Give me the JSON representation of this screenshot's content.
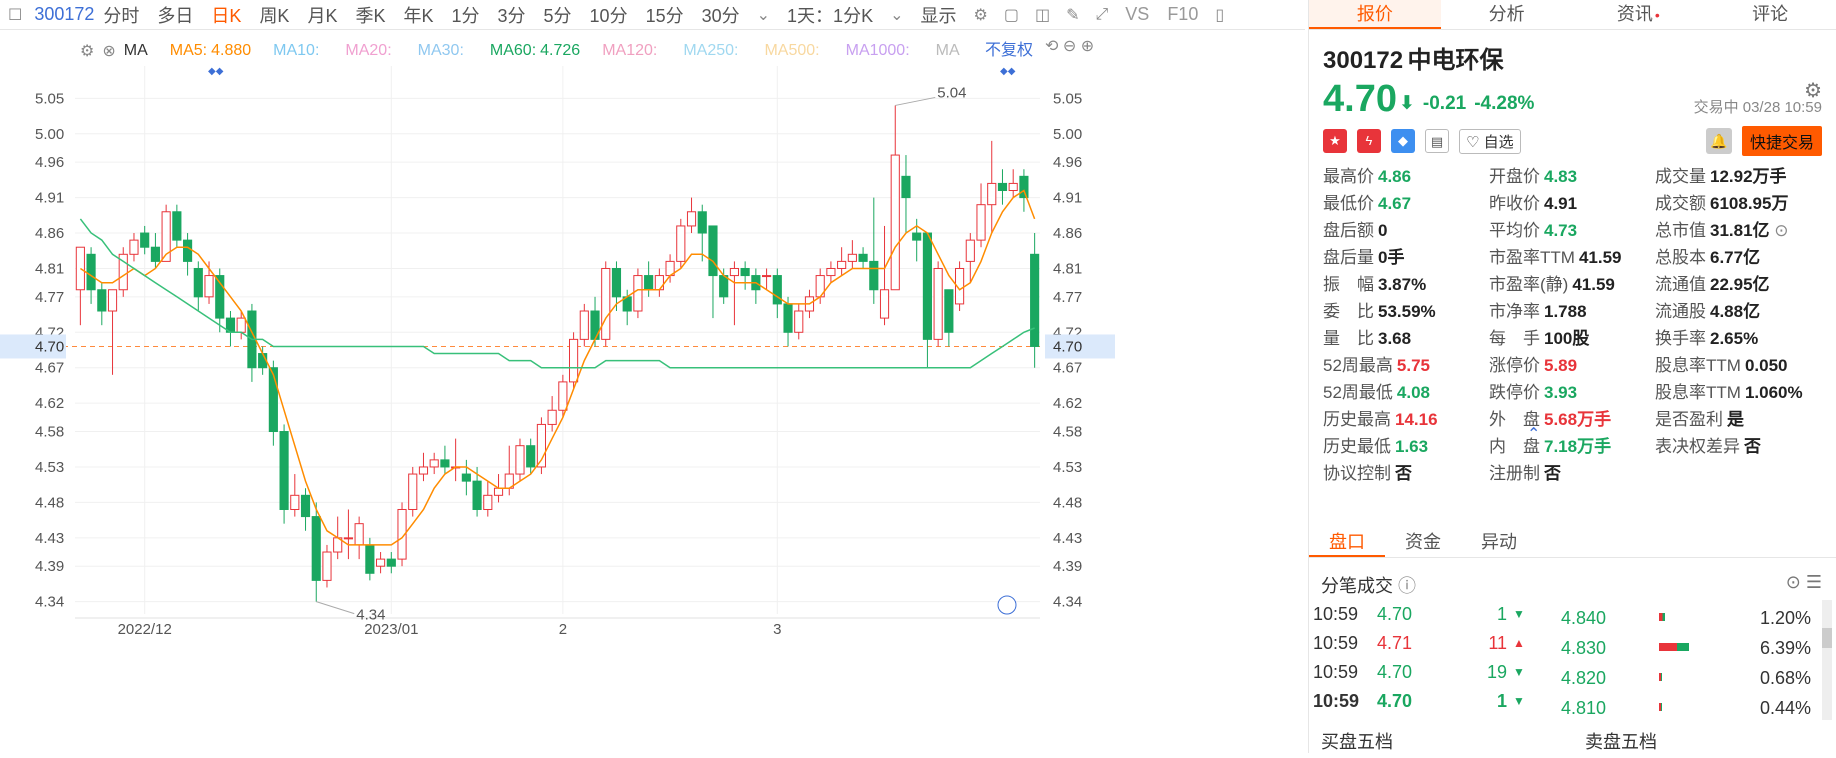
{
  "toolbar": {
    "code": "300172",
    "periods": [
      "分时",
      "多日",
      "日K",
      "周K",
      "月K",
      "季K",
      "年K",
      "1分",
      "3分",
      "5分",
      "10分",
      "15分",
      "30分"
    ],
    "active_period": "日K",
    "range": "1天：1分K",
    "display": "显示",
    "vs": "VS",
    "f10": "F10"
  },
  "ma_bar": {
    "label": "MA",
    "items": [
      {
        "name": "MA5:",
        "value": "4.880",
        "color": "#ff8c00"
      },
      {
        "name": "MA10:",
        "value": "",
        "color": "#7ec8f0"
      },
      {
        "name": "MA20:",
        "value": "",
        "color": "#f0a0d0"
      },
      {
        "name": "MA30:",
        "value": "",
        "color": "#90c8f0"
      },
      {
        "name": "MA60:",
        "value": "4.726",
        "color": "#1aa760"
      },
      {
        "name": "MA120:",
        "value": "",
        "color": "#f0a0c0"
      },
      {
        "name": "MA250:",
        "value": "",
        "color": "#a0d8f0"
      },
      {
        "name": "MA500:",
        "value": "",
        "color": "#f8d8a0"
      },
      {
        "name": "MA1000:",
        "value": "",
        "color": "#c8a0f0"
      },
      {
        "name": "MA",
        "value": "",
        "color": "#bbbbbb"
      }
    ],
    "adjust": "不复权"
  },
  "chart_data": {
    "type": "candlestick",
    "yticks": [
      "5.05",
      "5.00",
      "4.96",
      "4.91",
      "4.86",
      "4.81",
      "4.77",
      "4.72",
      "4.67",
      "4.62",
      "4.58",
      "4.53",
      "4.48",
      "4.43",
      "4.39",
      "4.34"
    ],
    "ylim": [
      4.3,
      5.09
    ],
    "xticks": [
      "2022/12",
      "2023/01",
      "2",
      "3"
    ],
    "current_price": "4.70",
    "high_label": "5.04",
    "low_label": "4.34",
    "candles": [
      [
        4.78,
        4.84,
        4.73,
        4.84
      ],
      [
        4.83,
        4.78,
        4.76,
        4.84
      ],
      [
        4.78,
        4.75,
        4.73,
        4.79
      ],
      [
        4.75,
        4.78,
        4.66,
        4.78
      ],
      [
        4.78,
        4.83,
        4.77,
        4.84
      ],
      [
        4.83,
        4.85,
        4.82,
        4.86
      ],
      [
        4.86,
        4.84,
        4.83,
        4.87
      ],
      [
        4.84,
        4.82,
        4.81,
        4.86
      ],
      [
        4.82,
        4.89,
        4.82,
        4.9
      ],
      [
        4.89,
        4.85,
        4.84,
        4.9
      ],
      [
        4.85,
        4.82,
        4.8,
        4.86
      ],
      [
        4.81,
        4.77,
        4.75,
        4.82
      ],
      [
        4.77,
        4.8,
        4.76,
        4.82
      ],
      [
        4.8,
        4.74,
        4.72,
        4.81
      ],
      [
        4.74,
        4.72,
        4.7,
        4.75
      ],
      [
        4.72,
        4.74,
        4.71,
        4.75
      ],
      [
        4.75,
        4.67,
        4.65,
        4.76
      ],
      [
        4.69,
        4.67,
        4.66,
        4.7
      ],
      [
        4.67,
        4.58,
        4.56,
        4.68
      ],
      [
        4.58,
        4.47,
        4.45,
        4.59
      ],
      [
        4.47,
        4.49,
        4.46,
        4.52
      ],
      [
        4.49,
        4.46,
        4.44,
        4.5
      ],
      [
        4.46,
        4.37,
        4.34,
        4.48
      ],
      [
        4.37,
        4.41,
        4.36,
        4.42
      ],
      [
        4.41,
        4.43,
        4.4,
        4.46
      ],
      [
        4.43,
        4.43,
        4.4,
        4.47
      ],
      [
        4.42,
        4.45,
        4.4,
        4.46
      ],
      [
        4.42,
        4.38,
        4.37,
        4.43
      ],
      [
        4.39,
        4.4,
        4.38,
        4.41
      ],
      [
        4.4,
        4.39,
        4.38,
        4.41
      ],
      [
        4.4,
        4.47,
        4.39,
        4.48
      ],
      [
        4.47,
        4.52,
        4.46,
        4.53
      ],
      [
        4.52,
        4.53,
        4.51,
        4.55
      ],
      [
        4.53,
        4.54,
        4.52,
        4.55
      ],
      [
        4.54,
        4.53,
        4.52,
        4.56
      ],
      [
        4.53,
        4.53,
        4.51,
        4.57
      ],
      [
        4.52,
        4.51,
        4.49,
        4.54
      ],
      [
        4.51,
        4.47,
        4.46,
        4.53
      ],
      [
        4.47,
        4.49,
        4.46,
        4.51
      ],
      [
        4.49,
        4.5,
        4.48,
        4.52
      ],
      [
        4.5,
        4.52,
        4.49,
        4.56
      ],
      [
        4.52,
        4.56,
        4.51,
        4.57
      ],
      [
        4.56,
        4.53,
        4.52,
        4.57
      ],
      [
        4.53,
        4.59,
        4.52,
        4.6
      ],
      [
        4.59,
        4.61,
        4.58,
        4.63
      ],
      [
        4.61,
        4.65,
        4.6,
        4.66
      ],
      [
        4.65,
        4.71,
        4.64,
        4.72
      ],
      [
        4.71,
        4.75,
        4.7,
        4.76
      ],
      [
        4.75,
        4.71,
        4.7,
        4.77
      ],
      [
        4.71,
        4.81,
        4.7,
        4.82
      ],
      [
        4.81,
        4.77,
        4.75,
        4.82
      ],
      [
        4.77,
        4.75,
        4.73,
        4.78
      ],
      [
        4.75,
        4.8,
        4.74,
        4.81
      ],
      [
        4.8,
        4.78,
        4.77,
        4.82
      ],
      [
        4.78,
        4.8,
        4.77,
        4.81
      ],
      [
        4.8,
        4.82,
        4.79,
        4.83
      ],
      [
        4.82,
        4.87,
        4.81,
        4.88
      ],
      [
        4.87,
        4.89,
        4.86,
        4.91
      ],
      [
        4.89,
        4.86,
        4.82,
        4.9
      ],
      [
        4.87,
        4.8,
        4.74,
        4.87
      ],
      [
        4.8,
        4.77,
        4.76,
        4.81
      ],
      [
        4.8,
        4.81,
        4.73,
        4.82
      ],
      [
        4.81,
        4.8,
        4.78,
        4.82
      ],
      [
        4.8,
        4.78,
        4.76,
        4.81
      ],
      [
        4.8,
        4.8,
        4.78,
        4.81
      ],
      [
        4.8,
        4.76,
        4.74,
        4.81
      ],
      [
        4.76,
        4.72,
        4.7,
        4.77
      ],
      [
        4.72,
        4.75,
        4.71,
        4.76
      ],
      [
        4.75,
        4.77,
        4.74,
        4.78
      ],
      [
        4.77,
        4.8,
        4.76,
        4.81
      ],
      [
        4.8,
        4.81,
        4.79,
        4.82
      ],
      [
        4.81,
        4.82,
        4.8,
        4.84
      ],
      [
        4.82,
        4.83,
        4.81,
        4.85
      ],
      [
        4.83,
        4.82,
        4.81,
        4.84
      ],
      [
        4.82,
        4.78,
        4.76,
        4.91
      ],
      [
        4.74,
        4.78,
        4.73,
        4.87
      ],
      [
        4.78,
        4.97,
        4.78,
        5.04
      ],
      [
        4.94,
        4.91,
        4.86,
        4.97
      ],
      [
        4.86,
        4.85,
        4.82,
        4.88
      ],
      [
        4.86,
        4.71,
        4.67,
        4.86
      ],
      [
        4.71,
        4.81,
        4.7,
        4.82
      ],
      [
        4.78,
        4.72,
        4.7,
        4.78
      ],
      [
        4.76,
        4.81,
        4.75,
        4.82
      ],
      [
        4.82,
        4.85,
        4.79,
        4.86
      ],
      [
        4.85,
        4.9,
        4.84,
        4.93
      ],
      [
        4.9,
        4.93,
        4.86,
        4.99
      ],
      [
        4.93,
        4.92,
        4.9,
        4.95
      ],
      [
        4.92,
        4.93,
        4.91,
        4.95
      ],
      [
        4.94,
        4.91,
        4.89,
        4.95
      ],
      [
        4.83,
        4.7,
        4.67,
        4.86
      ]
    ],
    "ma5": [
      4.81,
      4.8,
      4.79,
      4.79,
      4.8,
      4.81,
      4.8,
      4.81,
      4.83,
      4.84,
      4.84,
      4.83,
      4.81,
      4.79,
      4.77,
      4.75,
      4.72,
      4.69,
      4.66,
      4.61,
      4.56,
      4.51,
      4.47,
      4.44,
      4.43,
      4.42,
      4.42,
      4.42,
      4.42,
      4.42,
      4.43,
      4.45,
      4.47,
      4.5,
      4.52,
      4.53,
      4.53,
      4.52,
      4.51,
      4.5,
      4.5,
      4.51,
      4.52,
      4.54,
      4.57,
      4.6,
      4.64,
      4.68,
      4.71,
      4.74,
      4.76,
      4.77,
      4.78,
      4.78,
      4.78,
      4.8,
      4.81,
      4.83,
      4.83,
      4.82,
      4.8,
      4.79,
      4.79,
      4.79,
      4.78,
      4.77,
      4.76,
      4.76,
      4.76,
      4.77,
      4.79,
      4.8,
      4.81,
      4.81,
      4.81,
      4.81,
      4.84,
      4.86,
      4.87,
      4.86,
      4.83,
      4.8,
      4.78,
      4.79,
      4.82,
      4.86,
      4.89,
      4.91,
      4.92,
      4.88
    ],
    "ma60": [
      4.88,
      4.86,
      4.85,
      4.83,
      4.82,
      4.81,
      4.8,
      4.79,
      4.78,
      4.77,
      4.76,
      4.75,
      4.74,
      4.73,
      4.72,
      4.72,
      4.71,
      4.71,
      4.7,
      4.7,
      4.7,
      4.7,
      4.7,
      4.7,
      4.7,
      4.7,
      4.7,
      4.7,
      4.7,
      4.7,
      4.7,
      4.7,
      4.7,
      4.69,
      4.69,
      4.69,
      4.69,
      4.69,
      4.69,
      4.69,
      4.68,
      4.68,
      4.68,
      4.67,
      4.67,
      4.67,
      4.67,
      4.67,
      4.67,
      4.68,
      4.68,
      4.68,
      4.68,
      4.68,
      4.68,
      4.67,
      4.67,
      4.67,
      4.67,
      4.67,
      4.67,
      4.67,
      4.67,
      4.67,
      4.67,
      4.67,
      4.67,
      4.67,
      4.67,
      4.67,
      4.67,
      4.67,
      4.67,
      4.67,
      4.67,
      4.67,
      4.67,
      4.67,
      4.67,
      4.67,
      4.67,
      4.67,
      4.67,
      4.67,
      4.68,
      4.69,
      4.7,
      4.71,
      4.72,
      4.726
    ]
  },
  "quote": {
    "tabs": [
      "报价",
      "分析",
      "资讯",
      "评论"
    ],
    "code": "300172",
    "name": "中电环保",
    "price": "4.70",
    "arrow": "⬇",
    "change": "-0.21",
    "pct": "-4.28%",
    "status": "交易中 03/28 10:59",
    "watch": "自选",
    "trade": "快捷交易",
    "rows": [
      [
        {
          "l": "最高价",
          "v": "4.86",
          "c": "grn"
        },
        {
          "l": "开盘价",
          "v": "4.83",
          "c": "grn"
        },
        {
          "l": "成交量",
          "v": "12.92万手",
          "c": ""
        }
      ],
      [
        {
          "l": "最低价",
          "v": "4.67",
          "c": "grn"
        },
        {
          "l": "昨收价",
          "v": "4.91",
          "c": ""
        },
        {
          "l": "成交额",
          "v": "6108.95万",
          "c": ""
        }
      ],
      [
        {
          "l": "盘后额",
          "v": "0",
          "c": ""
        },
        {
          "l": "平均价",
          "v": "4.73",
          "c": "grn"
        },
        {
          "l": "总市值",
          "v": "31.81亿",
          "c": ""
        }
      ],
      [
        {
          "l": "盘后量",
          "v": "0手",
          "c": ""
        },
        {
          "l": "市盈率TTM",
          "v": "41.59",
          "c": ""
        },
        {
          "l": "总股本",
          "v": "6.77亿",
          "c": ""
        }
      ],
      [
        {
          "l": "振　幅",
          "v": "3.87%",
          "c": ""
        },
        {
          "l": "市盈率(静)",
          "v": "41.59",
          "c": ""
        },
        {
          "l": "流通值",
          "v": "22.95亿",
          "c": ""
        }
      ],
      [
        {
          "l": "委　比",
          "v": "53.59%",
          "c": ""
        },
        {
          "l": "市净率",
          "v": "1.788",
          "c": ""
        },
        {
          "l": "流通股",
          "v": "4.88亿",
          "c": ""
        }
      ],
      [
        {
          "l": "量　比",
          "v": "3.68",
          "c": ""
        },
        {
          "l": "每　手",
          "v": "100股",
          "c": ""
        },
        {
          "l": "换手率",
          "v": "2.65%",
          "c": ""
        }
      ],
      [
        {
          "l": "52周最高",
          "v": "5.75",
          "c": "red"
        },
        {
          "l": "涨停价",
          "v": "5.89",
          "c": "red"
        },
        {
          "l": "股息率TTM",
          "v": "0.050",
          "c": ""
        }
      ],
      [
        {
          "l": "52周最低",
          "v": "4.08",
          "c": "grn"
        },
        {
          "l": "跌停价",
          "v": "3.93",
          "c": "grn"
        },
        {
          "l": "股息率TTM",
          "v": "1.060%",
          "c": ""
        }
      ],
      [
        {
          "l": "历史最高",
          "v": "14.16",
          "c": "red"
        },
        {
          "l": "外　盘",
          "v": "5.68万手",
          "c": "red"
        },
        {
          "l": "是否盈利",
          "v": "是",
          "c": ""
        }
      ],
      [
        {
          "l": "历史最低",
          "v": "1.63",
          "c": "grn"
        },
        {
          "l": "内　盘",
          "v": "7.18万手",
          "c": "grn"
        },
        {
          "l": "表决权差异",
          "v": "否",
          "c": ""
        }
      ],
      [
        {
          "l": "协议控制",
          "v": "否",
          "c": ""
        },
        {
          "l": "注册制",
          "v": "否",
          "c": ""
        },
        {
          "l": "",
          "v": "",
          "c": ""
        }
      ]
    ]
  },
  "panel": {
    "tabs": [
      "盘口",
      "资金",
      "异动"
    ],
    "ticks_title": "分笔成交",
    "ticks": [
      {
        "t": "10:59",
        "p": "4.70",
        "q": "1",
        "dir": "down"
      },
      {
        "t": "10:59",
        "p": "4.71",
        "q": "11",
        "dir": "up"
      },
      {
        "t": "10:59",
        "p": "4.70",
        "q": "19",
        "dir": "down"
      },
      {
        "t": "10:59",
        "p": "4.70",
        "q": "1",
        "dir": "down"
      }
    ],
    "levels": [
      {
        "p": "4.840",
        "pct": "1.20%",
        "share": 0.012
      },
      {
        "p": "4.830",
        "pct": "6.39%",
        "share": 0.0639
      },
      {
        "p": "4.820",
        "pct": "0.68%",
        "share": 0.0068
      },
      {
        "p": "4.810",
        "pct": "0.44%",
        "share": 0.0044
      }
    ],
    "buy5": "买盘五档",
    "sell5": "卖盘五档"
  }
}
